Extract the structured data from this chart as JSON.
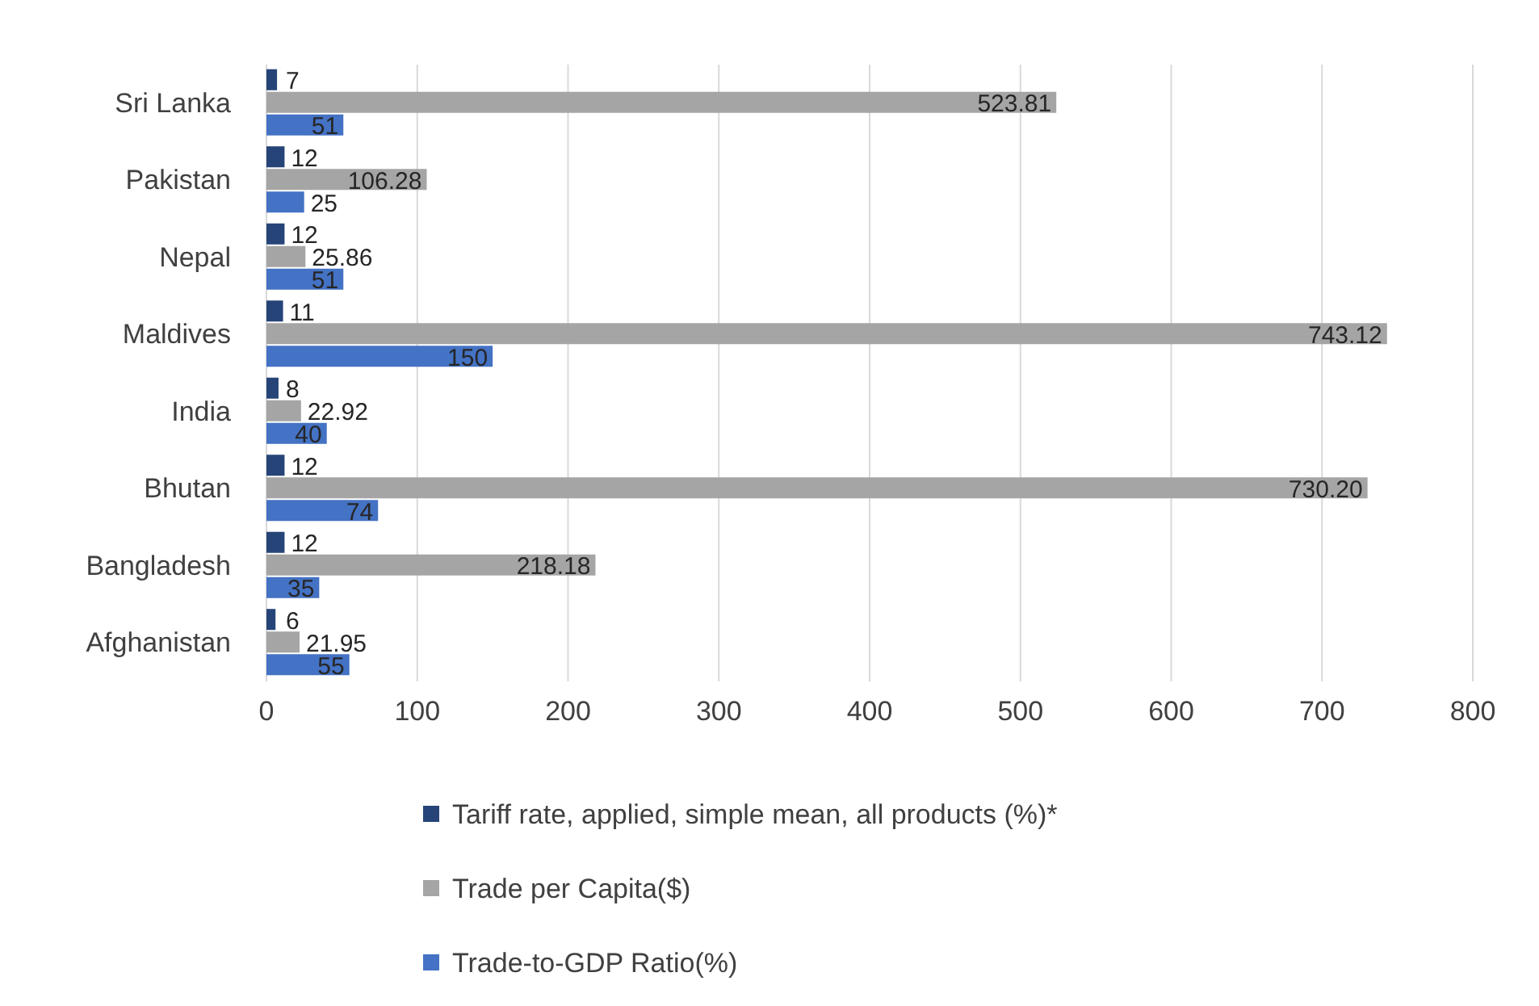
{
  "chart_data": {
    "type": "bar",
    "orientation": "horizontal",
    "categories": [
      "Sri Lanka",
      "Pakistan",
      "Nepal",
      "Maldives",
      "India",
      "Bhutan",
      "Bangladesh",
      "Afghanistan"
    ],
    "series": [
      {
        "name": "Tariff rate, applied, simple mean, all products (%)*",
        "color": "#264478",
        "values": [
          7,
          12,
          12,
          11,
          8,
          12,
          12,
          6
        ],
        "value_labels": [
          "7",
          "12",
          "12",
          "11",
          "8",
          "12",
          "12",
          "6"
        ]
      },
      {
        "name": "Trade per Capita($)",
        "color": "#a5a5a5",
        "values": [
          523.81,
          106.28,
          25.86,
          743.12,
          22.92,
          730.2,
          218.18,
          21.95
        ],
        "value_labels": [
          "523.81",
          "106.28",
          "25.86",
          "743.12",
          "22.92",
          "730.20",
          "218.18",
          "21.95"
        ]
      },
      {
        "name": "Trade-to-GDP Ratio(%)",
        "color": "#4472c4",
        "values": [
          51,
          25,
          51,
          150,
          40,
          74,
          35,
          55
        ],
        "value_labels": [
          "51",
          "25",
          "51",
          "150",
          "40",
          "74",
          "35",
          "55"
        ]
      }
    ],
    "xlim": [
      0,
      800
    ],
    "xticks": [
      0,
      100,
      200,
      300,
      400,
      500,
      600,
      700,
      800
    ],
    "grid": "x",
    "legend": "bottom"
  }
}
